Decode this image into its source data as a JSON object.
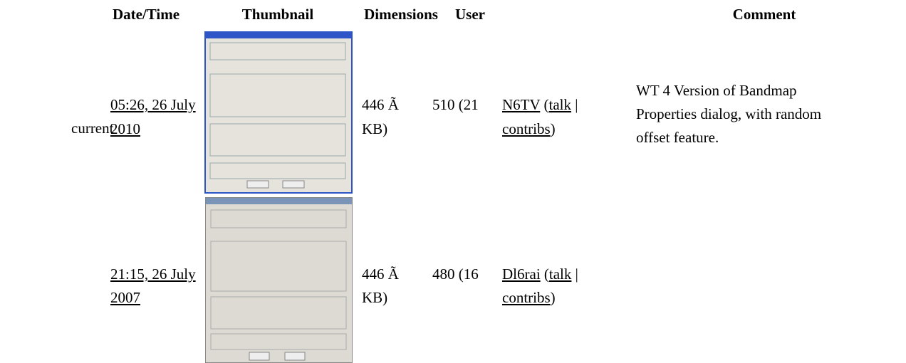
{
  "table": {
    "headers": [
      "Date/Time",
      "Thumbnail",
      "Dimensions",
      "User",
      "Comment"
    ],
    "rows": [
      {
        "status": "current",
        "date_line1": "05:26, 26 July",
        "date_line2": "2010",
        "dim_a": "446 Ã",
        "dim_b": "510 (21",
        "dim_c": "KB)",
        "user": "N6TV",
        "open": " (",
        "talk": "talk",
        "sep": " |",
        "contribs": "contribs",
        "close": ")",
        "comment": [
          "WT 4 Version of Bandmap",
          "Properties dialog, with random",
          "offset feature."
        ]
      },
      {
        "date_line1": "21:15, 26 July",
        "date_line2": "2007",
        "dim_a": "446 Ã",
        "dim_b": "480 (16",
        "dim_c": "KB)",
        "user": "Dl6rai",
        "open": " (",
        "talk": "talk",
        "sep": " |",
        "contribs": "contribs",
        "close": ")"
      }
    ]
  }
}
